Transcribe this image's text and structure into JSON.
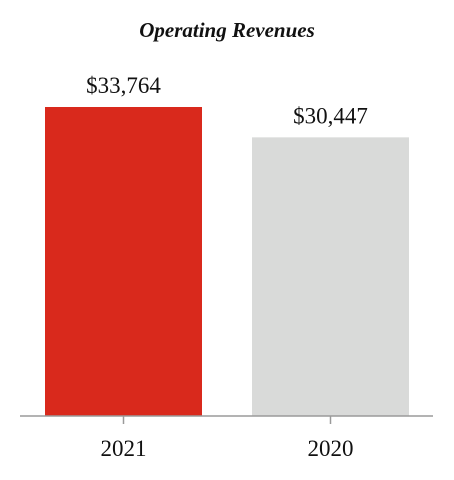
{
  "chart_data": {
    "type": "bar",
    "title": "Operating Revenues",
    "xlabel": "",
    "ylabel": "",
    "categories": [
      "2021",
      "2020"
    ],
    "values": [
      33764,
      30447
    ],
    "data_labels": [
      "$33,764",
      "$30,447"
    ],
    "ylim": [
      0,
      33764
    ],
    "grid": false,
    "legend": "none",
    "colors": [
      "#d9291c",
      "#d9dad9"
    ],
    "axis_color": "#9a9a9a"
  }
}
